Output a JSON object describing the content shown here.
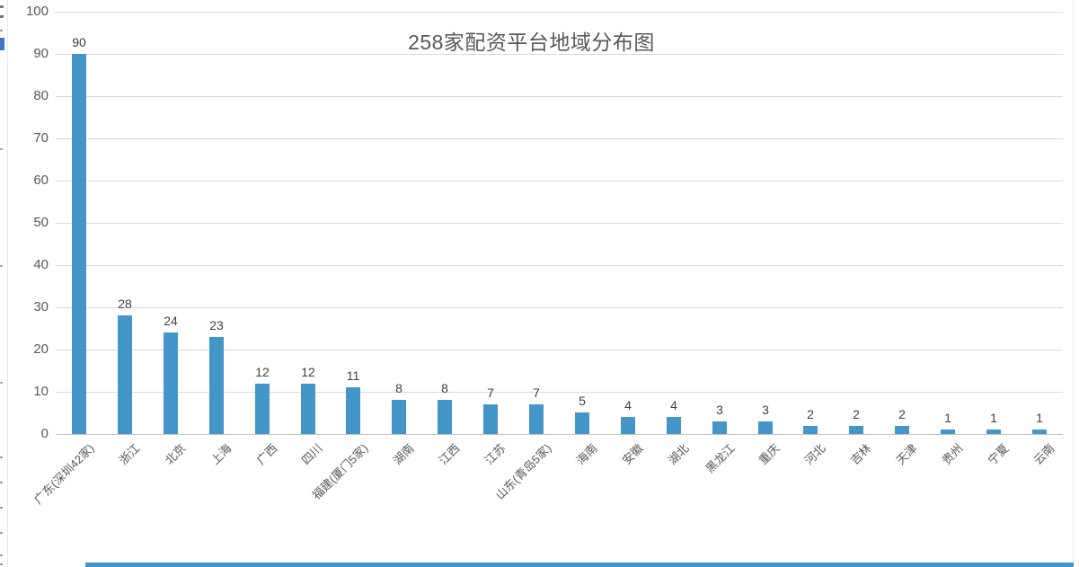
{
  "chart_data": {
    "type": "bar",
    "title": "258家配资平台地域分布图",
    "categories": [
      "广东(深圳42家)",
      "浙江",
      "北京",
      "上海",
      "广西",
      "四川",
      "福建(厦门5家)",
      "湖南",
      "江西",
      "江苏",
      "山东(青岛5家)",
      "海南",
      "安徽",
      "湖北",
      "黑龙江",
      "重庆",
      "河北",
      "吉林",
      "天津",
      "贵州",
      "宁夏",
      "云南"
    ],
    "values": [
      90,
      28,
      24,
      23,
      12,
      12,
      11,
      8,
      8,
      7,
      7,
      5,
      4,
      4,
      3,
      3,
      2,
      2,
      2,
      1,
      1,
      1
    ],
    "data_labels": [
      90,
      28,
      24,
      23,
      12,
      12,
      11,
      8,
      8,
      7,
      7,
      5,
      4,
      4,
      3,
      3,
      2,
      2,
      2,
      1,
      1,
      1
    ],
    "xlabel": "",
    "ylabel": "",
    "ylim": [
      0,
      100
    ],
    "yticks": [
      "0",
      "10",
      "20",
      "30",
      "40",
      "50",
      "60",
      "70",
      "80",
      "90",
      "100"
    ],
    "grid": "horizontal",
    "legend": "none",
    "x_label_rotation_deg": 45,
    "colors": {
      "bar": "#4495c8",
      "title": "#595959",
      "axis_tick_labels": "#595959",
      "category_labels": "#595959",
      "value_labels": "#404040",
      "gridline": "#d9d9d9",
      "axis_line": "#c3c3c3",
      "scrollbar": "#4495c8",
      "page_border": "#e6e6e6"
    }
  }
}
